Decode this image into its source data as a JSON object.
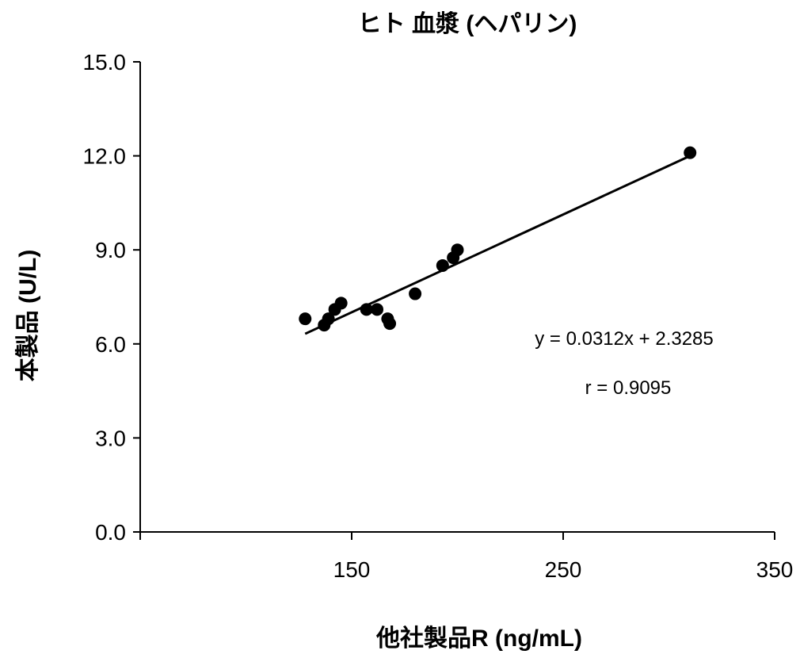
{
  "chart_data": {
    "type": "scatter",
    "title": "ヒト 血漿 (ヘパリン)",
    "xlabel": "他社製品R (ng/mL)",
    "ylabel": "本製品 (U/L)",
    "xlim": [
      50,
      350
    ],
    "ylim": [
      0,
      15
    ],
    "x_ticks": [
      "150",
      "250",
      "350"
    ],
    "y_ticks": [
      "0.0",
      "3.0",
      "6.0",
      "9.0",
      "12.0",
      "15.0"
    ],
    "grid": false,
    "points": [
      {
        "x": 128,
        "y": 6.8
      },
      {
        "x": 137,
        "y": 6.6
      },
      {
        "x": 139,
        "y": 6.8
      },
      {
        "x": 142,
        "y": 7.1
      },
      {
        "x": 145,
        "y": 7.3
      },
      {
        "x": 157,
        "y": 7.1
      },
      {
        "x": 162,
        "y": 7.1
      },
      {
        "x": 167,
        "y": 6.8
      },
      {
        "x": 168,
        "y": 6.65
      },
      {
        "x": 180,
        "y": 7.6
      },
      {
        "x": 193,
        "y": 8.5
      },
      {
        "x": 198,
        "y": 8.75
      },
      {
        "x": 200,
        "y": 9.0
      },
      {
        "x": 310,
        "y": 12.1
      }
    ],
    "trendline": {
      "slope": 0.0312,
      "intercept": 2.3285,
      "x_range": [
        128,
        310
      ]
    },
    "annotations": {
      "equation": "y = 0.0312x + 2.3285",
      "r": "r = 0.9095"
    },
    "marker_color": "#000000",
    "line_color": "#000000"
  }
}
